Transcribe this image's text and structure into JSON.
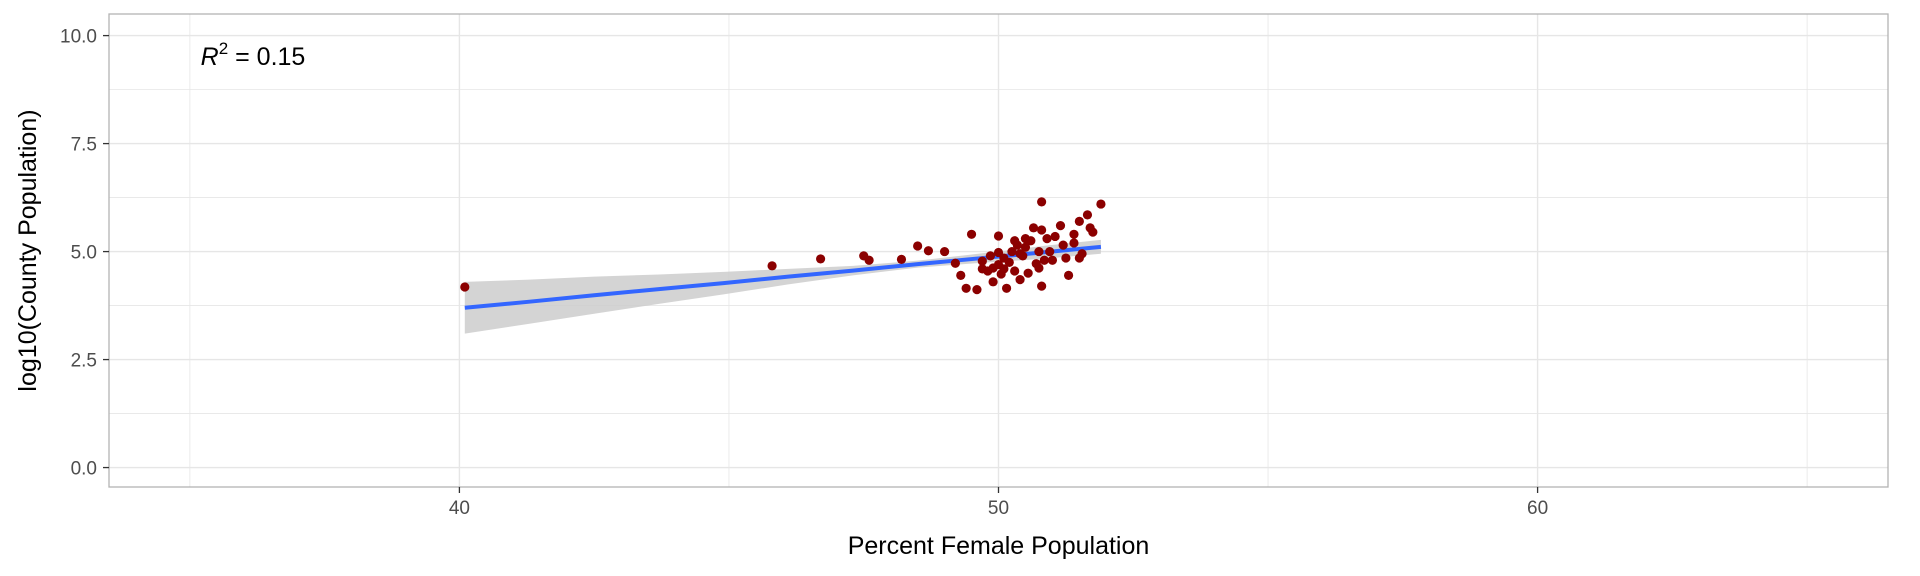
{
  "chart_data": {
    "type": "scatter",
    "title": "",
    "xlabel": "Percent Female Population",
    "ylabel": "log10(County Population)",
    "xlim": [
      33.5,
      66.5
    ],
    "ylim": [
      -0.45,
      10.5
    ],
    "x_ticks": [
      40,
      50,
      60
    ],
    "x_tick_labels": [
      "40",
      "50",
      "60"
    ],
    "y_ticks": [
      0,
      2.5,
      5,
      7.5,
      10
    ],
    "y_tick_labels": [
      "0.0",
      "2.5",
      "5.0",
      "7.5",
      "10.0"
    ],
    "grid": true,
    "annotation": {
      "symbol": "R",
      "superscript": "2",
      "text": " = 0.15",
      "x": 35.2,
      "y": 9.5
    },
    "points": [
      [
        40.1,
        4.18
      ],
      [
        45.8,
        4.67
      ],
      [
        46.7,
        4.83
      ],
      [
        47.5,
        4.9
      ],
      [
        47.6,
        4.8
      ],
      [
        48.2,
        4.82
      ],
      [
        48.5,
        5.13
      ],
      [
        48.7,
        5.02
      ],
      [
        49.0,
        5.0
      ],
      [
        49.2,
        4.73
      ],
      [
        49.3,
        4.45
      ],
      [
        49.4,
        4.15
      ],
      [
        49.5,
        5.4
      ],
      [
        49.6,
        4.12
      ],
      [
        49.7,
        4.6
      ],
      [
        49.7,
        4.78
      ],
      [
        49.8,
        4.55
      ],
      [
        49.85,
        4.9
      ],
      [
        49.9,
        4.62
      ],
      [
        49.9,
        4.3
      ],
      [
        50.0,
        4.7
      ],
      [
        50.0,
        5.36
      ],
      [
        50.0,
        4.98
      ],
      [
        50.05,
        4.48
      ],
      [
        50.1,
        4.85
      ],
      [
        50.1,
        4.6
      ],
      [
        50.15,
        4.15
      ],
      [
        50.2,
        4.75
      ],
      [
        50.25,
        5.0
      ],
      [
        50.3,
        4.55
      ],
      [
        50.3,
        5.25
      ],
      [
        50.35,
        5.15
      ],
      [
        50.4,
        4.95
      ],
      [
        50.4,
        4.35
      ],
      [
        50.45,
        4.9
      ],
      [
        50.5,
        5.1
      ],
      [
        50.5,
        5.3
      ],
      [
        50.55,
        4.5
      ],
      [
        50.6,
        5.25
      ],
      [
        50.65,
        5.55
      ],
      [
        50.7,
        4.72
      ],
      [
        50.75,
        5.0
      ],
      [
        50.75,
        4.62
      ],
      [
        50.8,
        4.2
      ],
      [
        50.85,
        4.8
      ],
      [
        50.9,
        5.3
      ],
      [
        50.95,
        5.0
      ],
      [
        50.8,
        5.5
      ],
      [
        51.05,
        5.35
      ],
      [
        51.15,
        5.6
      ],
      [
        51.2,
        5.15
      ],
      [
        50.8,
        6.15
      ],
      [
        51.25,
        4.85
      ],
      [
        51.3,
        4.45
      ],
      [
        51.4,
        5.2
      ],
      [
        51.4,
        5.4
      ],
      [
        51.55,
        4.95
      ],
      [
        51.5,
        5.7
      ],
      [
        51.65,
        5.85
      ],
      [
        51.7,
        5.55
      ],
      [
        51.75,
        5.45
      ],
      [
        51.9,
        6.1
      ],
      [
        51.5,
        4.85
      ],
      [
        51.0,
        4.8
      ]
    ],
    "fit": {
      "x": [
        40.1,
        41.3,
        42.5,
        43.7,
        44.9,
        46.1,
        47.3,
        48.5,
        49.7,
        50.9,
        51.9
      ],
      "y": [
        3.7,
        3.84,
        3.99,
        4.13,
        4.27,
        4.42,
        4.56,
        4.71,
        4.85,
        4.99,
        5.11
      ],
      "lower": [
        3.1,
        3.33,
        3.56,
        3.79,
        4.01,
        4.24,
        4.45,
        4.63,
        4.74,
        4.84,
        4.95
      ],
      "upper": [
        4.3,
        4.35,
        4.42,
        4.47,
        4.53,
        4.6,
        4.67,
        4.79,
        4.96,
        5.14,
        5.27
      ]
    },
    "colors": {
      "points": "#8b0000",
      "fit_line": "#3366ff",
      "ribbon": "#cccccc",
      "grid": "#e6e6e6",
      "panel_border": "#b3b3b3"
    }
  }
}
